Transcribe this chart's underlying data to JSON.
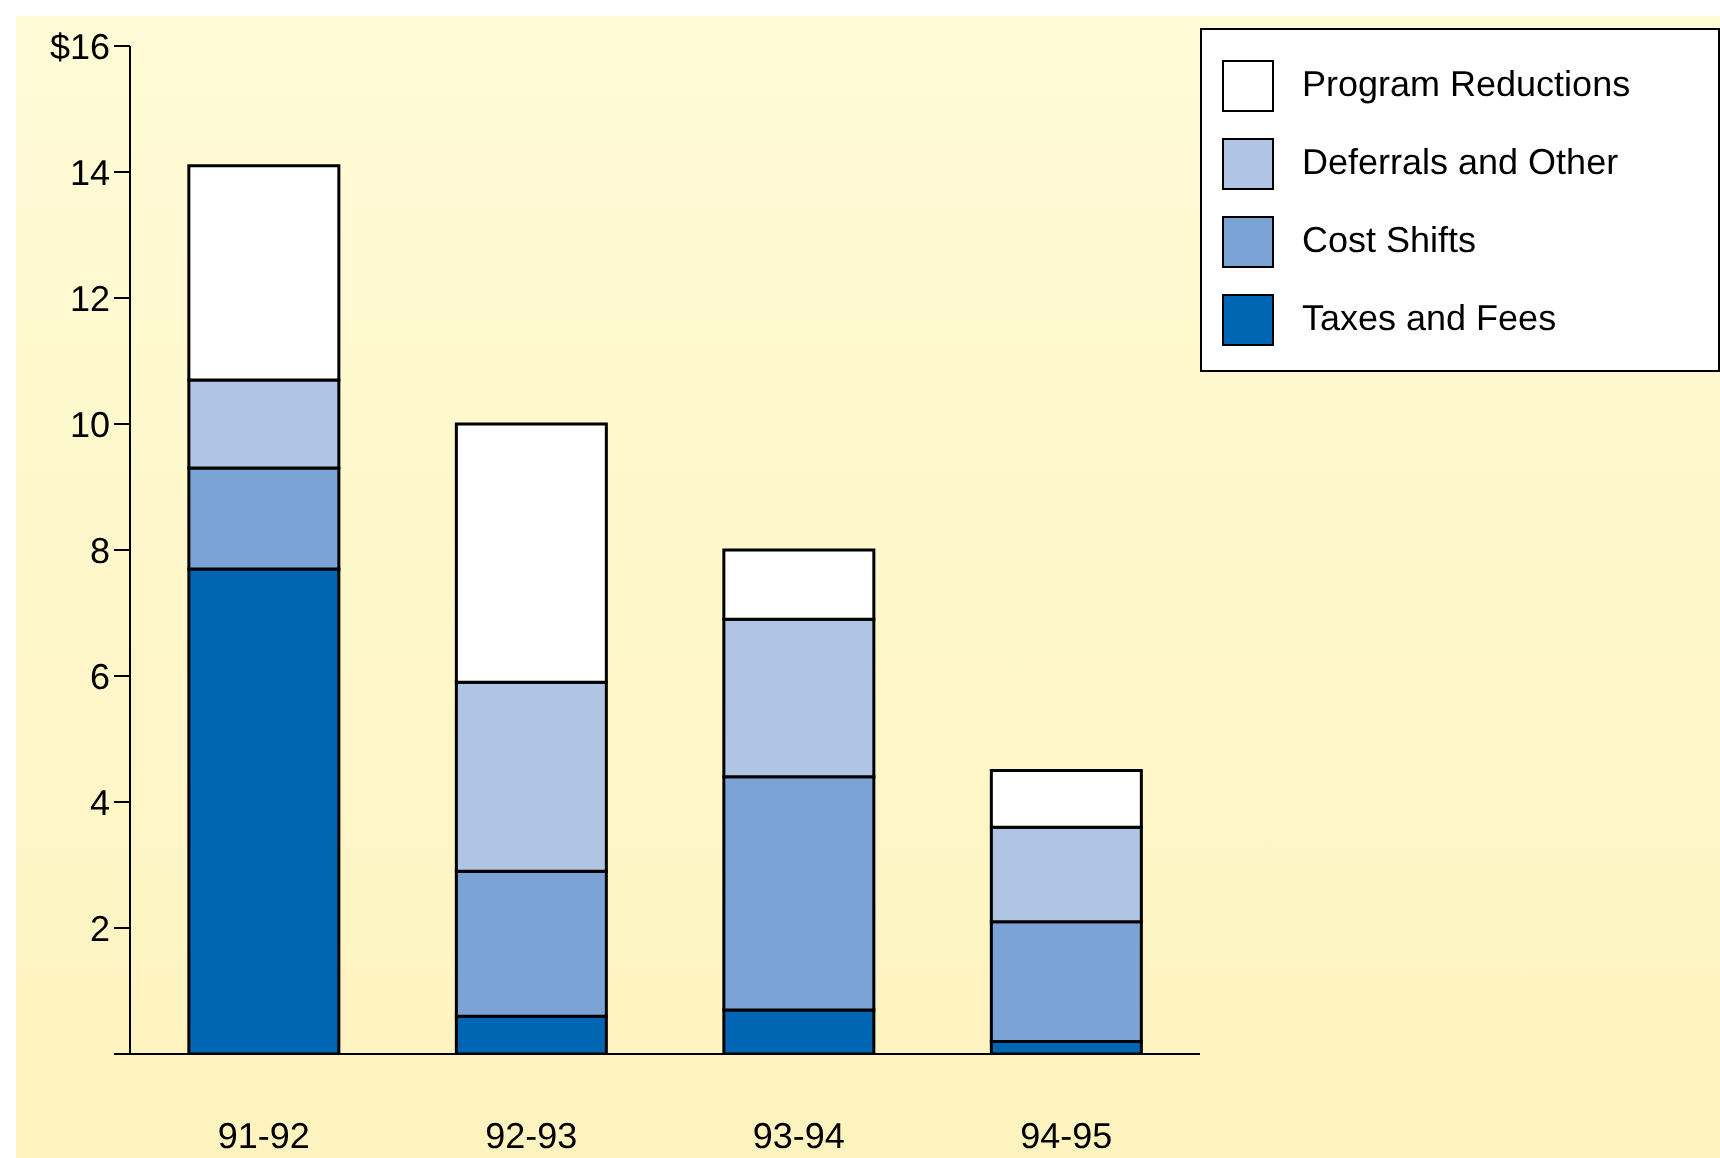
{
  "chart_data": {
    "type": "bar",
    "stacked": true,
    "categories": [
      "91-92",
      "92-93",
      "93-94",
      "94-95"
    ],
    "series": [
      {
        "name": "Taxes and Fees",
        "color": "#0066b3",
        "values": [
          7.7,
          0.6,
          0.7,
          0.2
        ]
      },
      {
        "name": "Cost Shifts",
        "color": "#7ba3d6",
        "values": [
          1.6,
          2.3,
          3.7,
          1.9
        ]
      },
      {
        "name": "Deferrals and Other",
        "color": "#b0c4e4",
        "values": [
          1.4,
          3.0,
          2.5,
          1.5
        ]
      },
      {
        "name": "Program Reductions",
        "color": "#ffffff",
        "values": [
          3.4,
          4.1,
          1.1,
          0.9
        ]
      }
    ],
    "ylim": [
      0,
      16
    ],
    "yticks": [
      {
        "value": 0,
        "label": null
      },
      2,
      4,
      6,
      8,
      10,
      12,
      14,
      {
        "value": 16,
        "label": "$16"
      }
    ],
    "grid": false,
    "legend": "top right"
  }
}
